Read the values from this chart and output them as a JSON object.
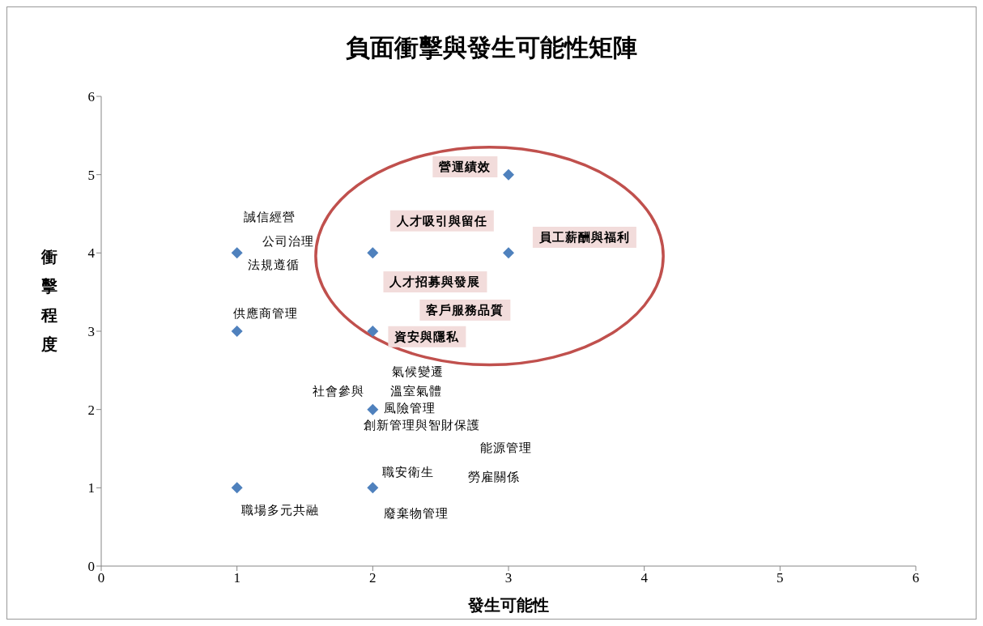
{
  "chart_data": {
    "type": "scatter",
    "title": "負面衝擊與發生可能性矩陣",
    "xlabel": "發生可能性",
    "ylabel": "衝擊程度",
    "x": [
      1,
      1,
      1,
      2,
      2,
      2,
      2,
      3,
      3
    ],
    "values": [
      4,
      3,
      1,
      4,
      3,
      2,
      1,
      5,
      4
    ],
    "color": "#4f81bd",
    "marker": "diamond",
    "xlim": [
      0,
      6
    ],
    "xticks": [
      0,
      1,
      2,
      3,
      4,
      5,
      6
    ],
    "ylim": [
      0,
      6
    ],
    "yticks": [
      0,
      1,
      2,
      3,
      4,
      5,
      6
    ],
    "grid": false,
    "legend": false,
    "annotations": [
      "誠信經營",
      "公司治理",
      "法規遵循",
      "供應商管理",
      "營運績效",
      "人才吸引與留任",
      "員工薪酬與福利",
      "人才招募與發展",
      "客戶服務品質",
      "資安與隱私",
      "氣候變遷",
      "社會參與",
      "溫室氣體",
      "風險管理",
      "創新管理與智財保護",
      "能源管理",
      "勞雇關係",
      "職安衛生",
      "職場多元共融",
      "廢棄物管理"
    ]
  }
}
